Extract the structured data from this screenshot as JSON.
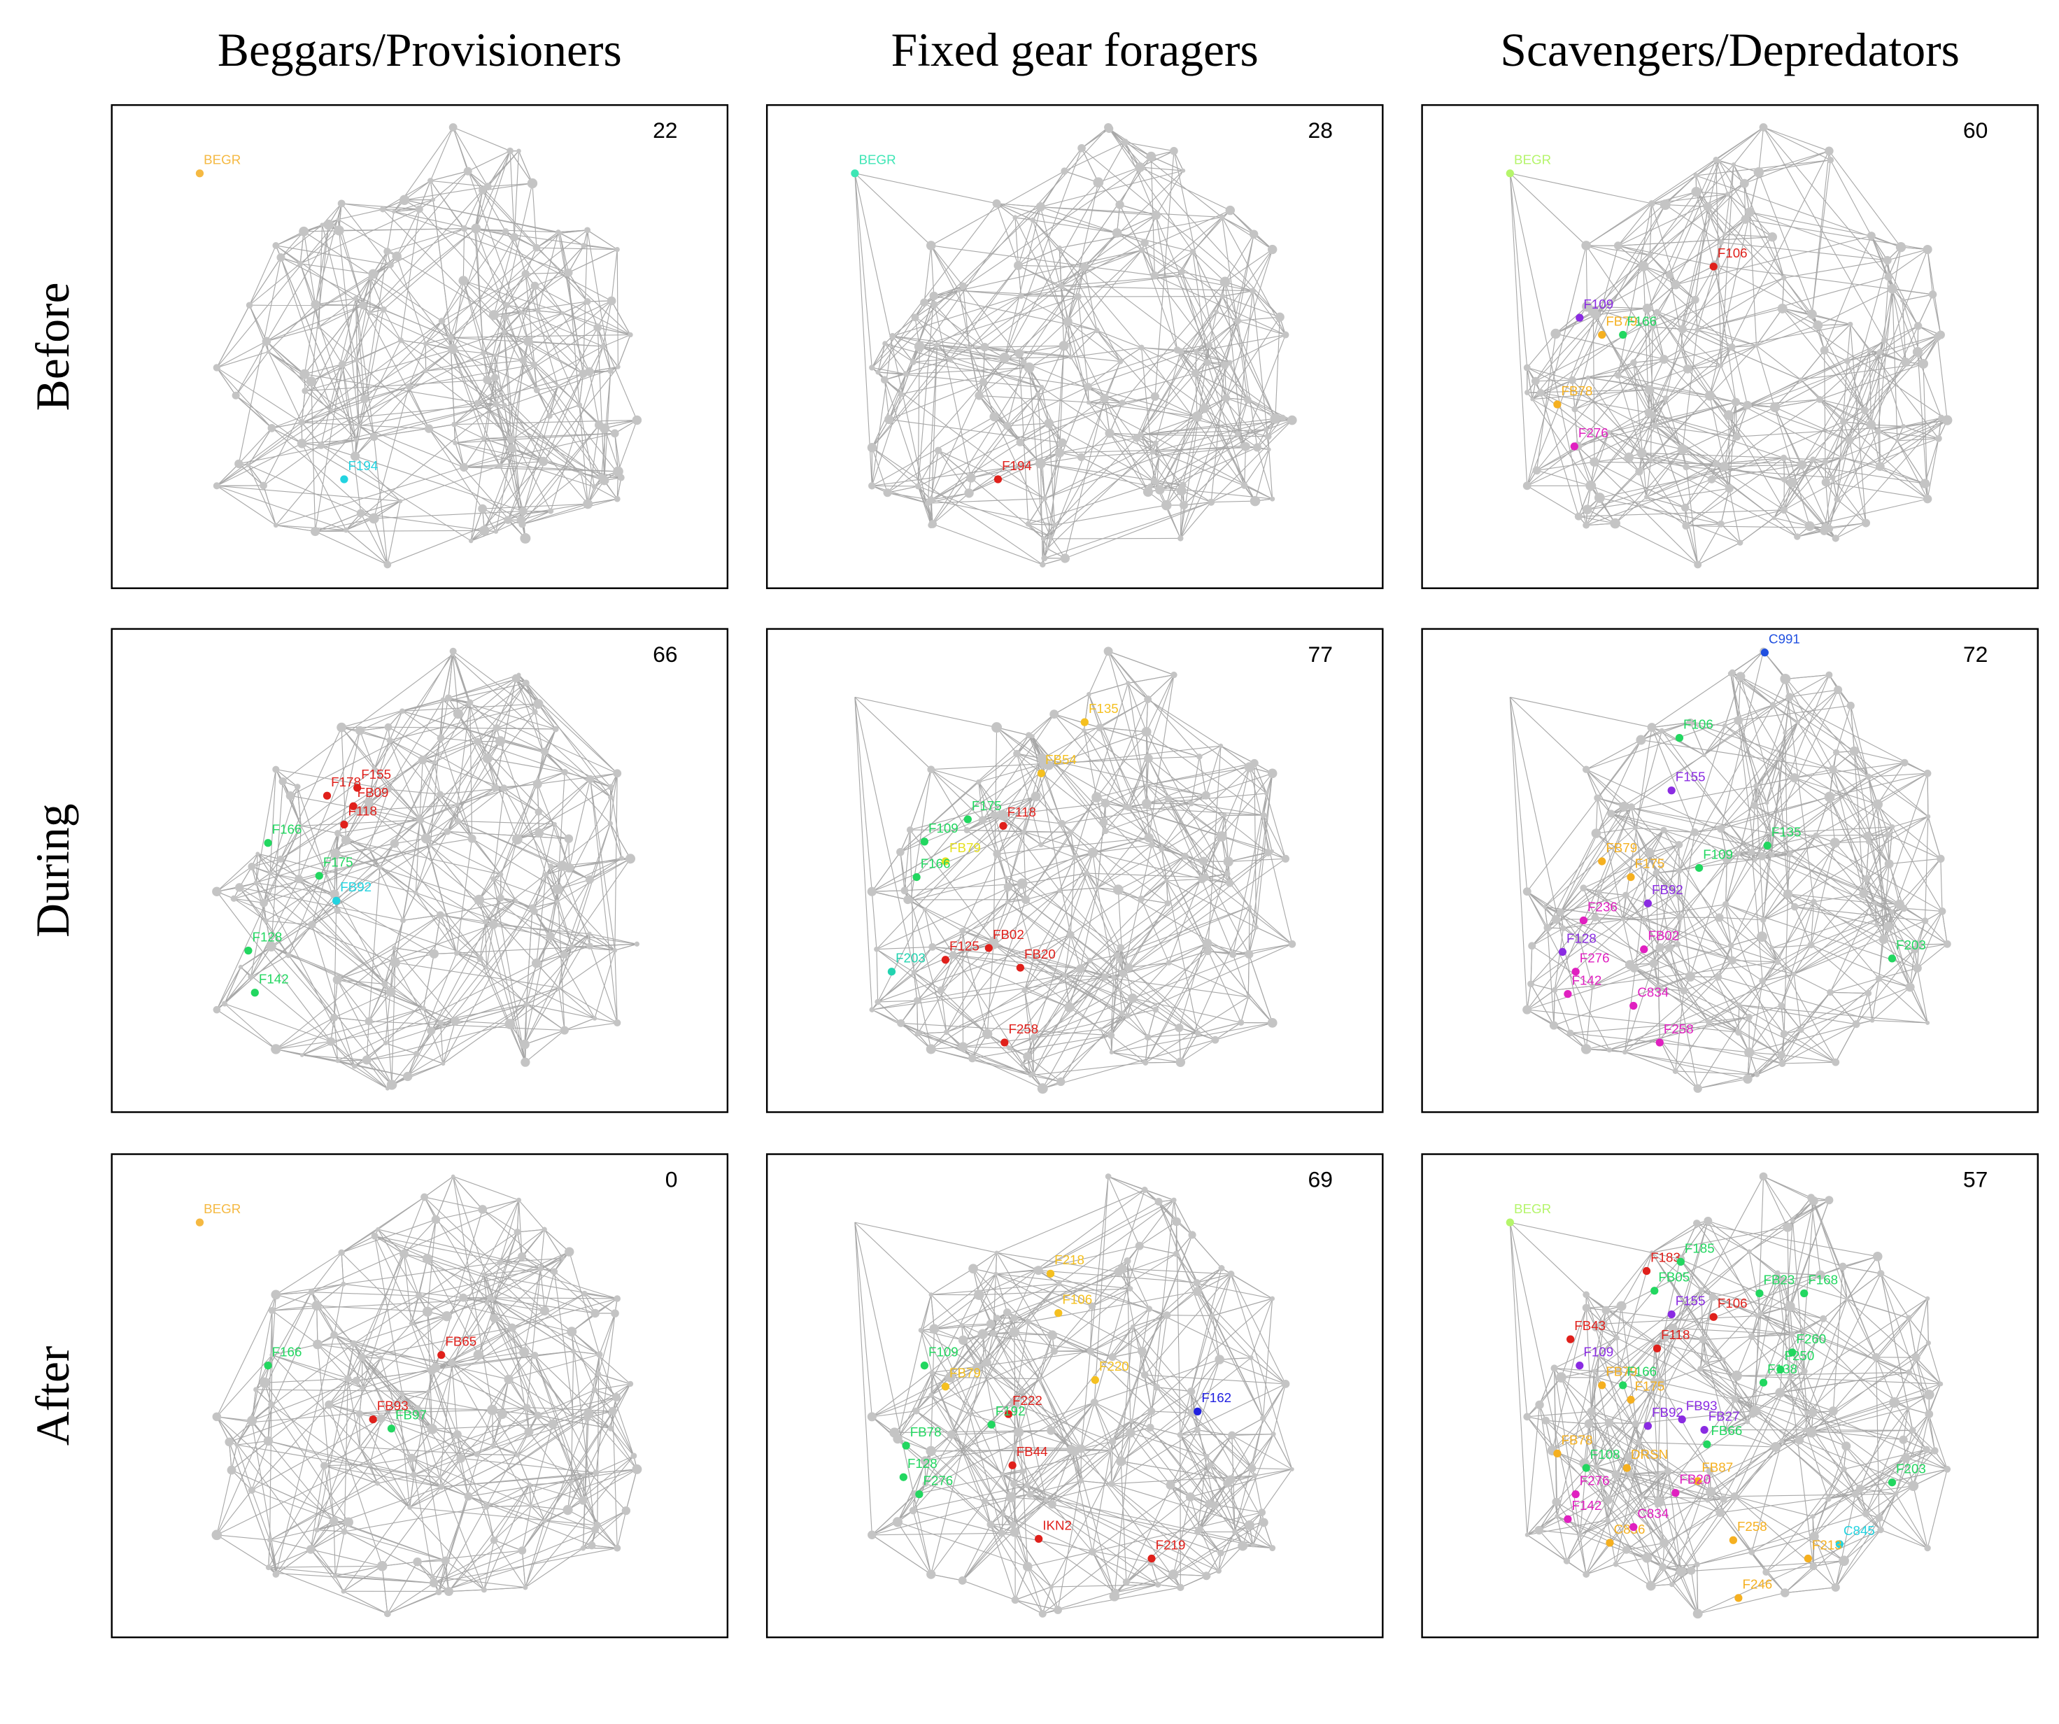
{
  "columns": [
    "Beggars/Provisioners",
    "Fixed gear foragers",
    "Scavengers/Depredators"
  ],
  "rows": [
    "Before",
    "During",
    "After"
  ],
  "panels": [
    [
      {
        "count": 22,
        "nodes": [
          {
            "label": "BEGR",
            "color": "#f5b942"
          },
          {
            "label": "F194",
            "color": "#22d3e0"
          }
        ]
      },
      {
        "count": 28,
        "nodes": [
          {
            "label": "BEGR",
            "color": "#3ee6b5"
          },
          {
            "label": "F194",
            "color": "#e0201b"
          }
        ]
      },
      {
        "count": 60,
        "nodes": [
          {
            "label": "BEGR",
            "color": "#b5f56b"
          },
          {
            "label": "F106",
            "color": "#e0201b"
          },
          {
            "label": "F109",
            "color": "#8a2be2"
          },
          {
            "label": "FB79",
            "color": "#f5b020"
          },
          {
            "label": "F166",
            "color": "#22d760"
          },
          {
            "label": "FB78",
            "color": "#f5b020"
          },
          {
            "label": "F276",
            "color": "#e020c0"
          }
        ]
      }
    ],
    [
      {
        "count": 66,
        "nodes": [
          {
            "label": "F155",
            "color": "#e0201b"
          },
          {
            "label": "F178",
            "color": "#e0201b"
          },
          {
            "label": "FB09",
            "color": "#e0201b"
          },
          {
            "label": "F118",
            "color": "#e0201b"
          },
          {
            "label": "F166",
            "color": "#22d760"
          },
          {
            "label": "F175",
            "color": "#22d760"
          },
          {
            "label": "FB92",
            "color": "#22d3e0"
          },
          {
            "label": "F128",
            "color": "#22d760"
          },
          {
            "label": "F142",
            "color": "#22d760"
          }
        ]
      },
      {
        "count": 77,
        "nodes": [
          {
            "label": "F135",
            "color": "#f5c020"
          },
          {
            "label": "FB54",
            "color": "#f5c020"
          },
          {
            "label": "F118",
            "color": "#e0201b"
          },
          {
            "label": "F175",
            "color": "#22d760"
          },
          {
            "label": "F109",
            "color": "#22d760"
          },
          {
            "label": "FB79",
            "color": "#e6e020"
          },
          {
            "label": "F166",
            "color": "#22d760"
          },
          {
            "label": "FB02",
            "color": "#e0201b"
          },
          {
            "label": "F125",
            "color": "#e0201b"
          },
          {
            "label": "FB20",
            "color": "#e0201b"
          },
          {
            "label": "F203",
            "color": "#22d3b0"
          },
          {
            "label": "F258",
            "color": "#e0201b"
          }
        ]
      },
      {
        "count": 72,
        "nodes": [
          {
            "label": "C991",
            "color": "#2050e0"
          },
          {
            "label": "F106",
            "color": "#22d760"
          },
          {
            "label": "F155",
            "color": "#8a2be2"
          },
          {
            "label": "F109",
            "color": "#22d760"
          },
          {
            "label": "F135",
            "color": "#22d760"
          },
          {
            "label": "FB79",
            "color": "#f5b020"
          },
          {
            "label": "F175",
            "color": "#f5b020"
          },
          {
            "label": "FB92",
            "color": "#8a2be2"
          },
          {
            "label": "F236",
            "color": "#e020c0"
          },
          {
            "label": "F128",
            "color": "#8a2be2"
          },
          {
            "label": "F276",
            "color": "#e020c0"
          },
          {
            "label": "FB02",
            "color": "#e020c0"
          },
          {
            "label": "F142",
            "color": "#e020c0"
          },
          {
            "label": "C834",
            "color": "#e020c0"
          },
          {
            "label": "F258",
            "color": "#e020c0"
          },
          {
            "label": "F203",
            "color": "#22d760"
          }
        ]
      }
    ],
    [
      {
        "count": 0,
        "nodes": [
          {
            "label": "BEGR",
            "color": "#f5b942"
          },
          {
            "label": "F166",
            "color": "#22d760"
          },
          {
            "label": "FB65",
            "color": "#e0201b"
          },
          {
            "label": "FB93",
            "color": "#e0201b"
          },
          {
            "label": "FB97",
            "color": "#22d760"
          }
        ]
      },
      {
        "count": 69,
        "nodes": [
          {
            "label": "F218",
            "color": "#f5c020"
          },
          {
            "label": "F106",
            "color": "#f5c020"
          },
          {
            "label": "F220",
            "color": "#f5c020"
          },
          {
            "label": "F162",
            "color": "#2020e0"
          },
          {
            "label": "F109",
            "color": "#22d760"
          },
          {
            "label": "FB79",
            "color": "#f5c020"
          },
          {
            "label": "F222",
            "color": "#e0201b"
          },
          {
            "label": "F192",
            "color": "#22d760"
          },
          {
            "label": "FB78",
            "color": "#22d760"
          },
          {
            "label": "F128",
            "color": "#22d760"
          },
          {
            "label": "F276",
            "color": "#22d760"
          },
          {
            "label": "FB44",
            "color": "#e0201b"
          },
          {
            "label": "IKN2",
            "color": "#e0201b"
          },
          {
            "label": "F219",
            "color": "#e0201b"
          }
        ]
      },
      {
        "count": 57,
        "nodes": [
          {
            "label": "BEGR",
            "color": "#b5f56b"
          },
          {
            "label": "F183",
            "color": "#e0201b"
          },
          {
            "label": "F185",
            "color": "#22d760"
          },
          {
            "label": "FB05",
            "color": "#22d760"
          },
          {
            "label": "F155",
            "color": "#8a2be2"
          },
          {
            "label": "F106",
            "color": "#e0201b"
          },
          {
            "label": "FB23",
            "color": "#22d760"
          },
          {
            "label": "F168",
            "color": "#22d760"
          },
          {
            "label": "FB43",
            "color": "#e0201b"
          },
          {
            "label": "F118",
            "color": "#e0201b"
          },
          {
            "label": "F109",
            "color": "#8a2be2"
          },
          {
            "label": "F260",
            "color": "#22d760"
          },
          {
            "label": "F250",
            "color": "#22d760"
          },
          {
            "label": "FB79",
            "color": "#f5b020"
          },
          {
            "label": "F166",
            "color": "#22d760"
          },
          {
            "label": "F175",
            "color": "#f5b020"
          },
          {
            "label": "F138",
            "color": "#22d760"
          },
          {
            "label": "FB92",
            "color": "#8a2be2"
          },
          {
            "label": "FB93",
            "color": "#8a2be2"
          },
          {
            "label": "FB27",
            "color": "#8a2be2"
          },
          {
            "label": "FB66",
            "color": "#22d760"
          },
          {
            "label": "FB78",
            "color": "#f5b020"
          },
          {
            "label": "F108",
            "color": "#22d760"
          },
          {
            "label": "DRSN",
            "color": "#f5b020"
          },
          {
            "label": "FB87",
            "color": "#f5b020"
          },
          {
            "label": "F276",
            "color": "#e020c0"
          },
          {
            "label": "FB20",
            "color": "#e020c0"
          },
          {
            "label": "F142",
            "color": "#e020c0"
          },
          {
            "label": "C836",
            "color": "#f5b020"
          },
          {
            "label": "C834",
            "color": "#e020c0"
          },
          {
            "label": "F203",
            "color": "#22d760"
          },
          {
            "label": "C845",
            "color": "#22d3e0"
          },
          {
            "label": "F258",
            "color": "#f5b020"
          },
          {
            "label": "F213",
            "color": "#f5b020"
          },
          {
            "label": "F246",
            "color": "#f5b020"
          }
        ]
      }
    ]
  ]
}
